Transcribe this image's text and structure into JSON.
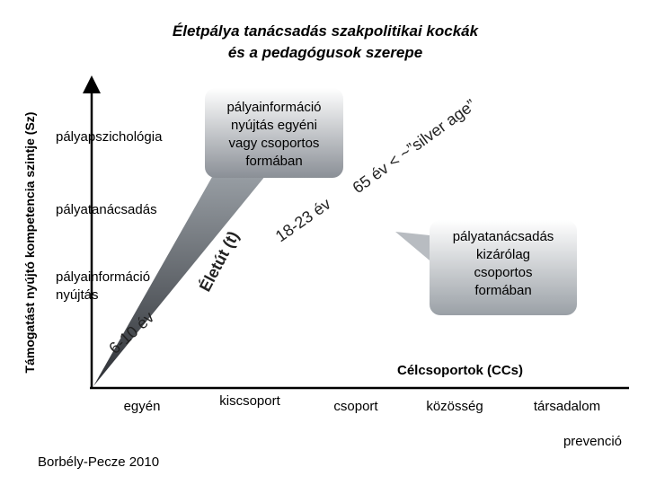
{
  "title": [
    "Életpálya tanácsadás szakpolitikai kockák",
    "és a pedagógusok szerepe"
  ],
  "y_axis": {
    "label": "Támogatást nyújtó kompetencia szintje (Sz)",
    "levels": [
      [
        "pályapszichológia"
      ],
      [
        "pályatanácsadás"
      ],
      [
        "pályainformáció",
        "nyújtás"
      ]
    ]
  },
  "diagonal_axis": {
    "labels": [
      "6-10 év",
      "Életút (t)",
      "18-23 év",
      "65 év < ~”silver age”"
    ]
  },
  "callouts": [
    [
      "pályainformáció",
      "nyújtás egyéni",
      "vagy csoportos",
      "formában"
    ],
    [
      "pályatanácsadás",
      "kizárólag",
      "csoportos",
      "formában"
    ]
  ],
  "x_axis": {
    "label": "Célcsoportok (CCs)",
    "categories": [
      "egyén",
      "kiscsoport",
      "csoport",
      "közösség",
      "társadalom"
    ],
    "note": "prevenció"
  },
  "footer": "Borbély-Pecze 2010"
}
